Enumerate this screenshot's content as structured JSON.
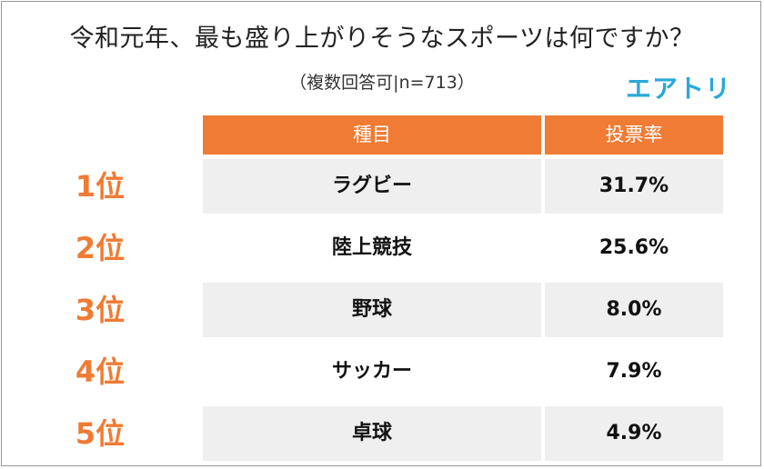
{
  "title": "令和元年、最も盛り上がりそうなスポーツは何ですか？",
  "subtitle": "（複数回答可|n=713）",
  "brand": "エアトリ",
  "chart_data": {
    "type": "table",
    "columns": [
      "種目",
      "投票率"
    ],
    "rows": [
      {
        "rank": "1位",
        "sport": "ラグビー",
        "value": "31.7%"
      },
      {
        "rank": "2位",
        "sport": "陸上競技",
        "value": "25.6%"
      },
      {
        "rank": "3位",
        "sport": "野球",
        "value": "8.0%"
      },
      {
        "rank": "4位",
        "sport": "サッカー",
        "value": "7.9%"
      },
      {
        "rank": "5位",
        "sport": "卓球",
        "value": "4.9%"
      }
    ]
  },
  "colors": {
    "accent": "#ef7b34",
    "brand": "#2aa8d8",
    "row_shade": "#efefef"
  }
}
